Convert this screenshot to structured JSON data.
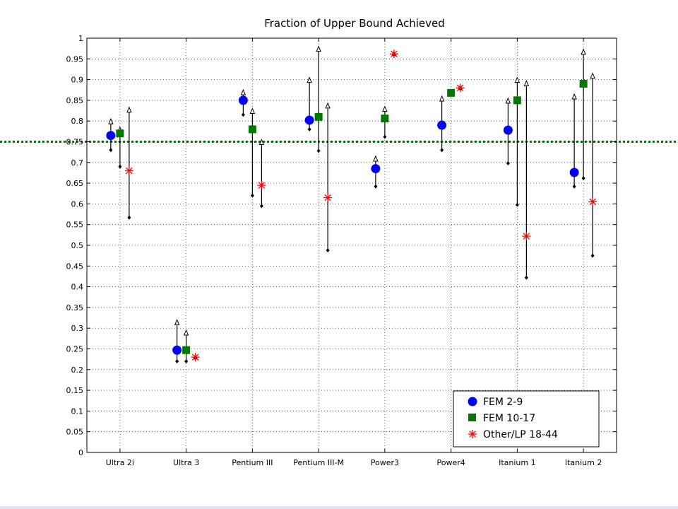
{
  "chart_data": {
    "type": "scatter",
    "title": "Fraction of Upper Bound Achieved",
    "xlabel": "",
    "ylabel": "",
    "categories": [
      "Ultra 2i",
      "Ultra 3",
      "Pentium III",
      "Pentium III-M",
      "Power3",
      "Power4",
      "Itanium 1",
      "Itanium 2"
    ],
    "ylim": [
      0,
      1
    ],
    "yticks": [
      "0",
      "0.05",
      "0.1",
      "0.15",
      "0.2",
      "0.25",
      "0.3",
      "0.35",
      "0.4",
      "0.45",
      "0.5",
      "0.55",
      "0.6",
      "0.65",
      "0.7",
      "0.75",
      "0.8",
      "0.85",
      "0.9",
      "0.95",
      "1"
    ],
    "grid": true,
    "reference_line": {
      "y": 0.75,
      "style": "dotted",
      "color": "#007700"
    },
    "legend_position": "bottom-right",
    "series": [
      {
        "name": "FEM 2-9",
        "marker": "circle",
        "color": "#0000ff",
        "values": [
          0.765,
          0.247,
          0.85,
          0.802,
          0.685,
          0.79,
          0.778,
          0.676
        ],
        "upper": [
          0.8,
          0.315,
          0.87,
          0.9,
          0.71,
          0.855,
          0.85,
          0.86
        ],
        "lower": [
          0.73,
          0.22,
          0.815,
          0.78,
          0.642,
          0.73,
          0.698,
          0.642
        ]
      },
      {
        "name": "FEM 10-17",
        "marker": "square",
        "color": "#007700",
        "values": [
          0.77,
          0.247,
          0.78,
          0.81,
          0.806,
          0.868,
          0.85,
          0.89
        ],
        "upper": [
          0.78,
          0.29,
          0.825,
          0.975,
          0.83,
          0.868,
          0.9,
          0.968
        ],
        "lower": [
          0.69,
          0.22,
          0.62,
          0.728,
          0.762,
          0.868,
          0.598,
          0.662
        ]
      },
      {
        "name": "Other/LP 18-44",
        "marker": "star",
        "color": "#ff0000",
        "values": [
          0.68,
          0.23,
          0.645,
          0.615,
          0.962,
          0.88,
          0.522,
          0.605
        ],
        "upper": [
          0.828,
          0.23,
          0.75,
          0.838,
          0.962,
          0.88,
          0.892,
          0.91
        ],
        "lower": [
          0.567,
          0.23,
          0.595,
          0.488,
          0.962,
          0.88,
          0.422,
          0.475
        ]
      }
    ]
  }
}
